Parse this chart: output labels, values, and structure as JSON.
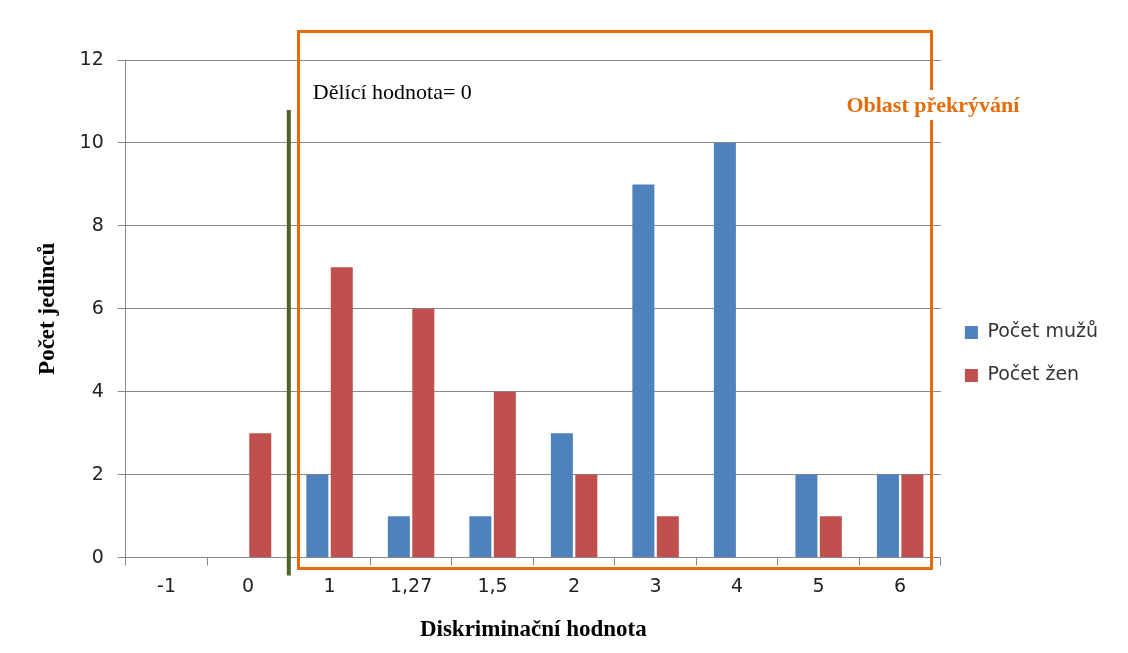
{
  "chart_data": {
    "type": "bar",
    "xlabel": "Diskriminační hodnota",
    "ylabel": "Počet jedinců",
    "categories": [
      "-1",
      "0",
      "1",
      "1,27",
      "1,5",
      "2",
      "3",
      "4",
      "5",
      "6"
    ],
    "series": [
      {
        "name": "Počet mužů",
        "color": "#4f81bd",
        "values": [
          0,
          0,
          2,
          1,
          1,
          3,
          9,
          10,
          2,
          2
        ]
      },
      {
        "name": "Počet žen",
        "color": "#c0504d",
        "values": [
          0,
          3,
          7,
          6,
          4,
          2,
          1,
          0,
          1,
          2
        ]
      }
    ],
    "ylim": [
      0,
      12
    ],
    "yticks": [
      0,
      2,
      4,
      6,
      8,
      10,
      12
    ],
    "grid": "y",
    "legend": "right",
    "ref_lines": [
      {
        "axis": "x",
        "value": "0",
        "label": "Dělící hodnota= 0",
        "color": "#4f6228"
      }
    ],
    "annotations": [
      "Oblast překrývání"
    ]
  }
}
